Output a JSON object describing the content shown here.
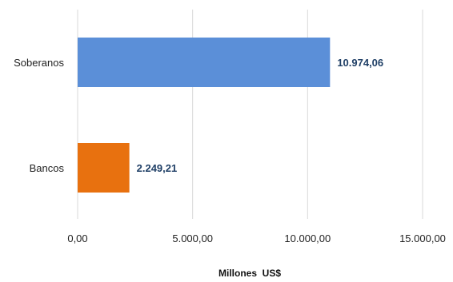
{
  "chart_data": {
    "type": "bar",
    "orientation": "horizontal",
    "categories": [
      "Soberanos",
      "Bancos"
    ],
    "values": [
      10974.06,
      2249.21
    ],
    "value_labels": [
      "10.974,06",
      "2.249,21"
    ],
    "colors": [
      "#5b8fd8",
      "#e8710f"
    ],
    "xlabel": "Millones  US$",
    "xlim": [
      0,
      15000
    ],
    "xticks": [
      0,
      5000,
      10000,
      15000
    ],
    "xtick_labels": [
      "0,00",
      "5.000,00",
      "10.000,00",
      "15.000,00"
    ],
    "grid": true,
    "legend": "none"
  }
}
